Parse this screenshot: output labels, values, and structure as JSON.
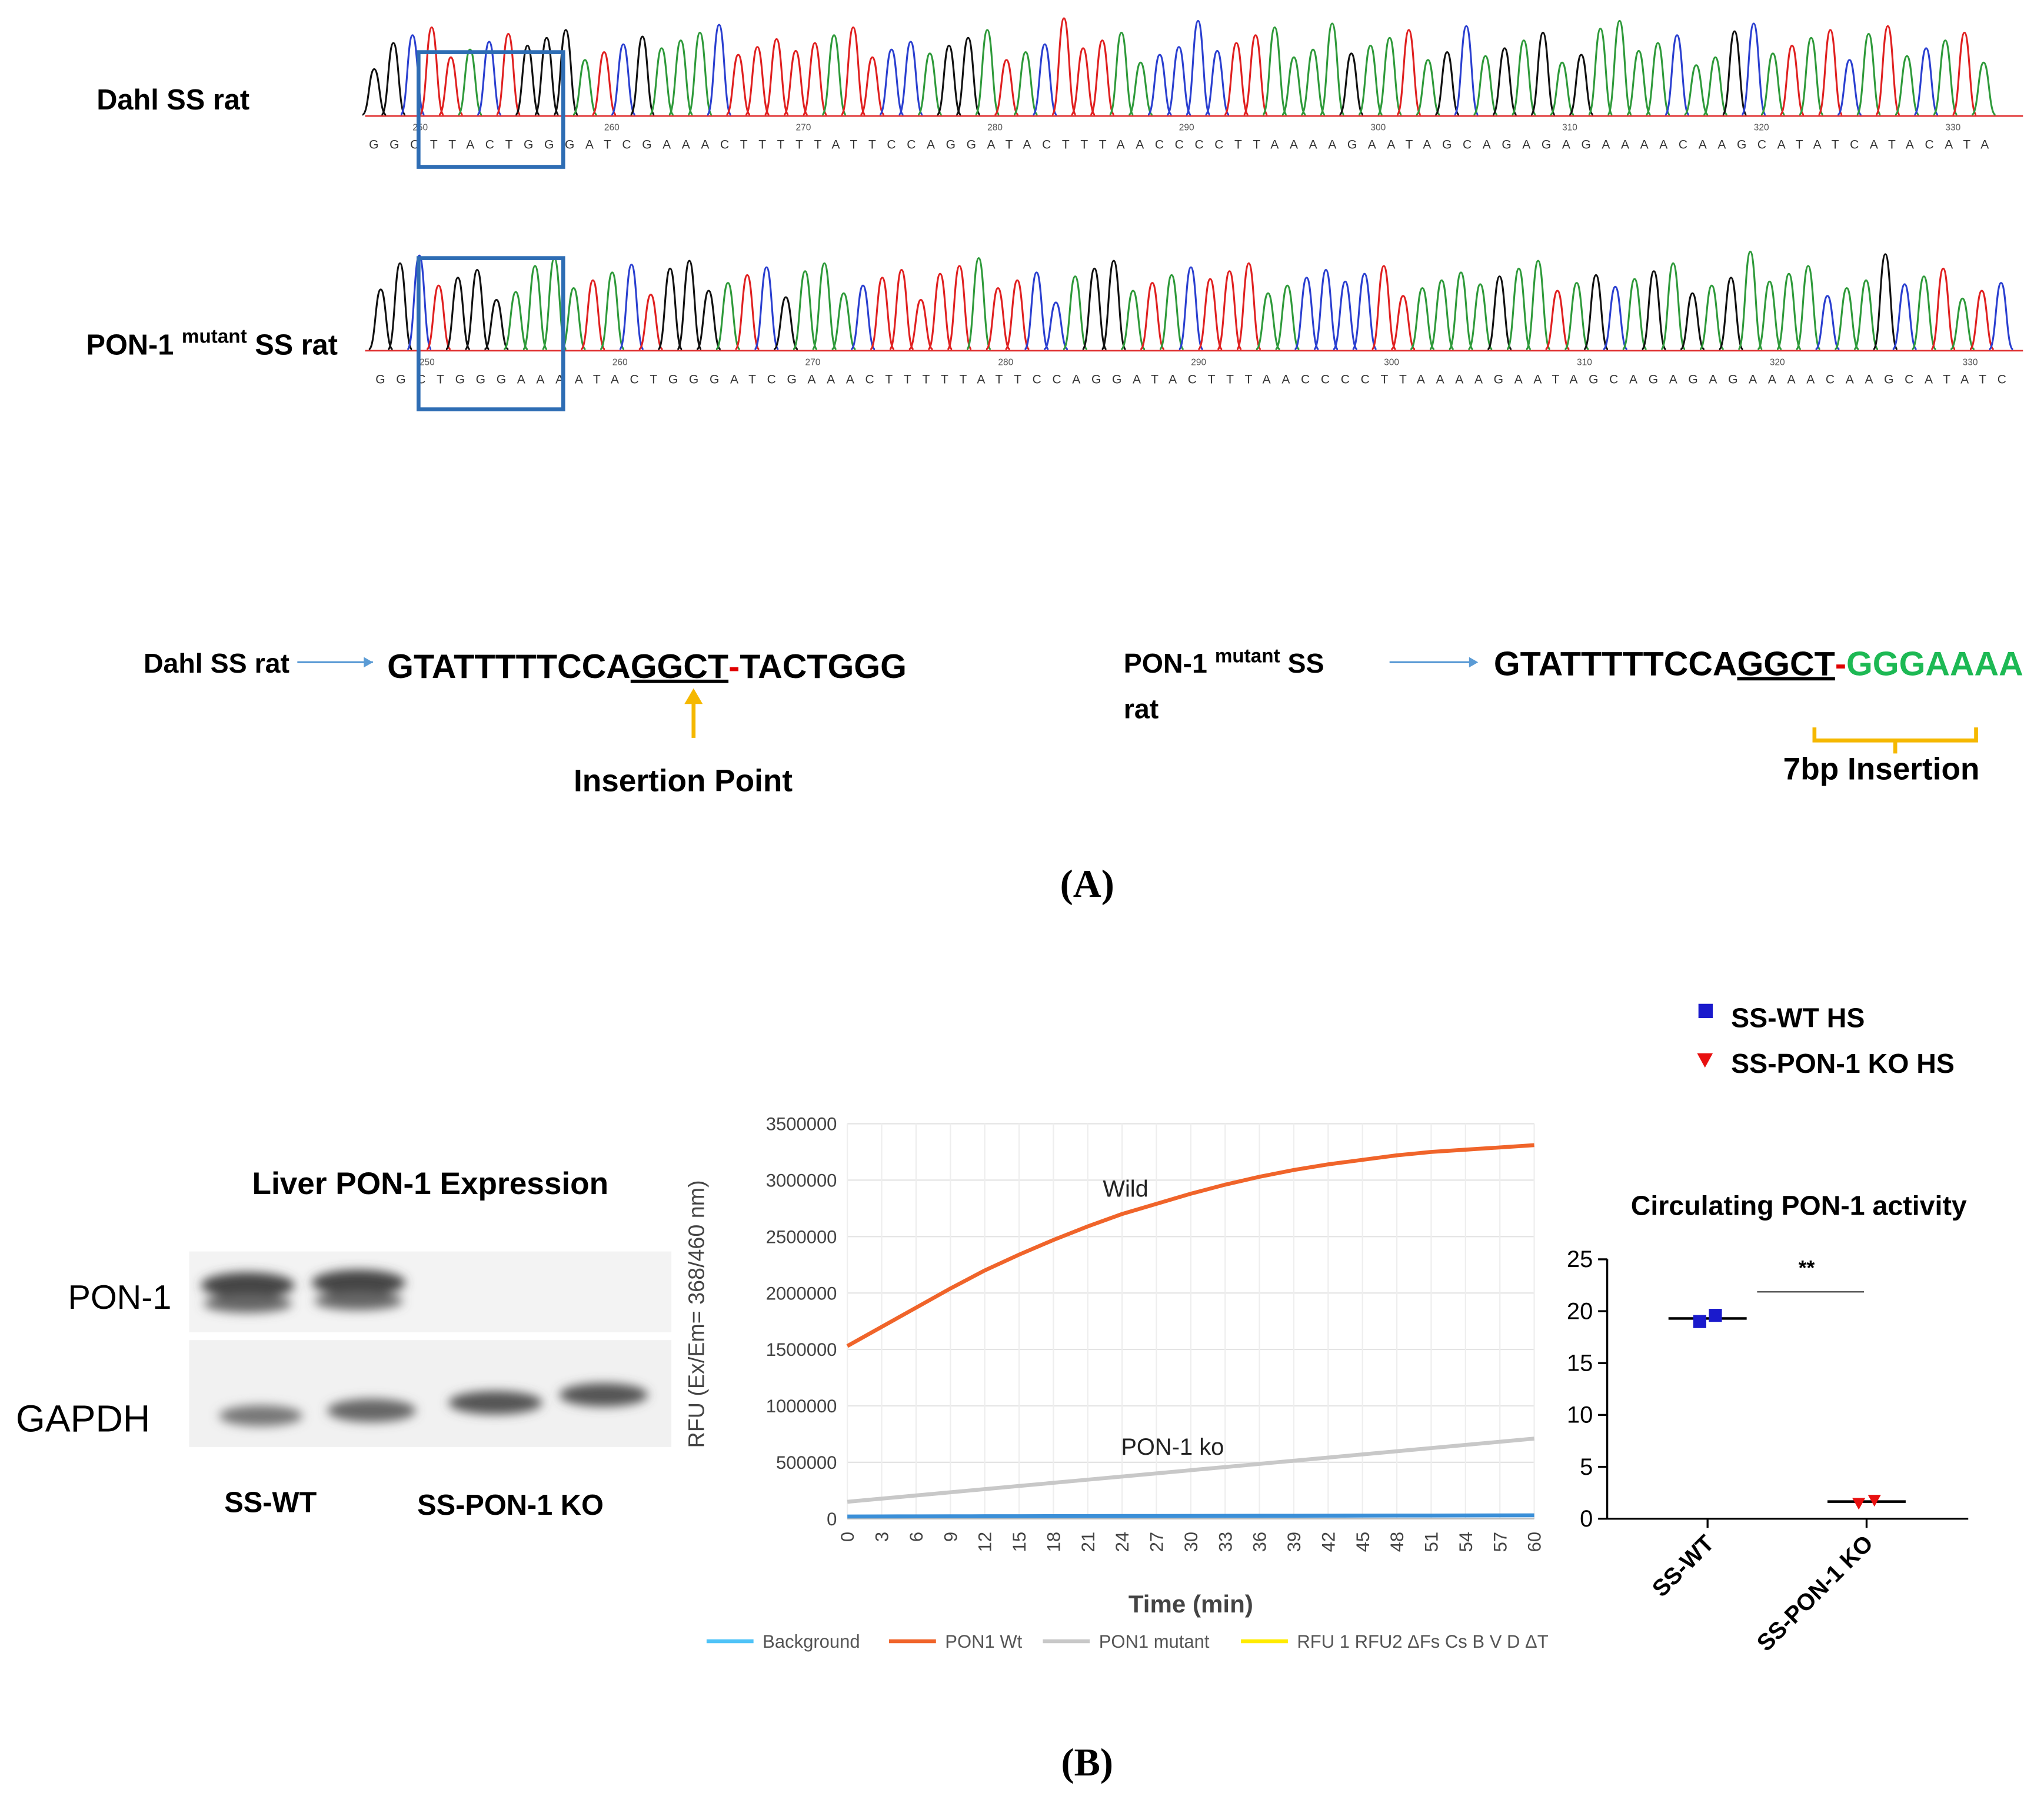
{
  "panel_a": {
    "traces": [
      {
        "label": "Dahl SS rat",
        "sequence": "GGCTTACTGGGATCGAAACTTTTTATTCCAGGATACTTTAACCCCTTAAAAGAATAGCAGAGAGAAAACAAGCATATCATACATA",
        "position_labels": [
          250,
          260,
          270,
          280,
          290,
          300,
          310,
          320,
          330
        ]
      },
      {
        "label_parts": [
          "PON-1",
          "mutant",
          "SS rat"
        ],
        "sequence": "GGCTGGGAAAATACTGGGATCGAAACTTTTTATTCCAGGATACTTTAACCCCTTAAAAGAATAGCAGAGAGAAAACAAGCATATC",
        "position_labels": [
          250,
          260,
          270,
          280,
          290,
          300,
          310,
          320,
          330
        ]
      }
    ],
    "wild": {
      "label": "Dahl SS rat",
      "seq_start": "GTATTTTTCCA",
      "seq_underlined": "GGCT",
      "dash": "-",
      "seq_end": "TACTGGG",
      "note": "Insertion Point"
    },
    "mutant": {
      "label_parts": [
        "PON-1",
        "mutant",
        "SS",
        "rat"
      ],
      "seq_start": "GTATTTTTCCA",
      "seq_underlined": "GGCT",
      "dash": "-",
      "seq_insert": "GGGAAAA",
      "note": "7bp Insertion"
    },
    "panel_label": "(A)"
  },
  "blot": {
    "title": "Liver PON-1 Expression",
    "rows": [
      "PON-1",
      "GAPDH"
    ],
    "groups": [
      "SS-WT",
      "SS-PON-1 KO"
    ]
  },
  "panel_b_label": "(B)",
  "chart_data": [
    {
      "type": "line",
      "xlabel": "Time (min)",
      "ylabel": "RFU (Ex/Em= 368/460 nm)",
      "x": [
        0,
        3,
        6,
        9,
        12,
        15,
        18,
        21,
        24,
        27,
        30,
        33,
        36,
        39,
        42,
        45,
        48,
        51,
        54,
        57,
        60
      ],
      "xlim": [
        0,
        60
      ],
      "xticks": [
        0,
        3,
        6,
        9,
        12,
        15,
        18,
        21,
        24,
        27,
        30,
        33,
        36,
        39,
        42,
        45,
        48,
        51,
        54,
        57,
        60
      ],
      "ylim": [
        0,
        3500000
      ],
      "yticks": [
        0,
        500000,
        1000000,
        1500000,
        2000000,
        2500000,
        3000000,
        3500000
      ],
      "grid": true,
      "series": [
        {
          "name": "Background",
          "color": "#3a8fd8",
          "legend_color": "#4fc3f7",
          "values": [
            20000,
            20500,
            21000,
            21500,
            22000,
            22500,
            23000,
            23500,
            24000,
            24500,
            25000,
            25500,
            26000,
            26500,
            27000,
            27500,
            28000,
            28500,
            29000,
            29500,
            30000
          ]
        },
        {
          "name": "PON1 Wt",
          "color": "#f0642a",
          "values": [
            1530000,
            1700000,
            1870000,
            2040000,
            2200000,
            2340000,
            2470000,
            2590000,
            2700000,
            2790000,
            2880000,
            2960000,
            3030000,
            3090000,
            3140000,
            3180000,
            3220000,
            3250000,
            3270000,
            3290000,
            3310000
          ]
        },
        {
          "name": "PON1 mutant",
          "color": "#c8c8c8",
          "values": [
            150000,
            178000,
            206000,
            234000,
            262000,
            290000,
            318000,
            346000,
            374000,
            402000,
            430000,
            458000,
            486000,
            514000,
            542000,
            570000,
            598000,
            626000,
            654000,
            682000,
            710000
          ]
        },
        {
          "name": "RFU 1 RFU2 ΔFs Cs B V D ΔT",
          "color": "#ffeb00",
          "values": [
            null,
            null,
            null,
            null,
            null,
            null,
            null,
            null,
            null,
            null,
            null,
            null,
            null,
            null,
            null,
            null,
            null,
            null,
            null,
            null,
            null
          ]
        }
      ],
      "annotations": [
        "Wild",
        "PON-1 ko"
      ]
    },
    {
      "type": "scatter",
      "title": "Circulating PON-1 activity",
      "categories": [
        "SS-WT",
        "SS-PON-1 KO"
      ],
      "ylim": [
        0,
        25
      ],
      "yticks": [
        0,
        5,
        10,
        15,
        20,
        25
      ],
      "series": [
        {
          "name": "SS-WT HS",
          "color": "#1a1acc",
          "marker": "square",
          "values": [
            19.0,
            19.6
          ]
        },
        {
          "name": "SS-PON-1 KO HS",
          "color": "#e81010",
          "marker": "triangle",
          "values": [
            1.5,
            1.8
          ]
        }
      ],
      "means": [
        19.3,
        1.65
      ],
      "annotation": "**"
    }
  ]
}
